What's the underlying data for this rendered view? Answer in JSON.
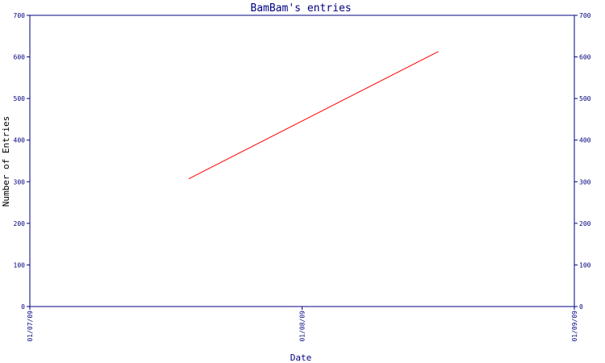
{
  "chart_data": {
    "type": "line",
    "title": "BamBam's entries",
    "xlabel": "Date",
    "ylabel": "Number of Entries",
    "x_ticks": [
      "01/07/09",
      "01/08/09",
      "01/09/09"
    ],
    "y_ticks": [
      0,
      100,
      200,
      300,
      400,
      500,
      600,
      700
    ],
    "ylim": [
      0,
      700
    ],
    "xlim": [
      "01/07/09",
      "01/09/09"
    ],
    "series": [
      {
        "x": [
          "01/07/09 14:00",
          "01/08/09 12:00"
        ],
        "y": [
          307,
          613
        ]
      }
    ],
    "grid": false,
    "colors": {
      "axis": "#000080",
      "line": "#ff0000"
    }
  }
}
